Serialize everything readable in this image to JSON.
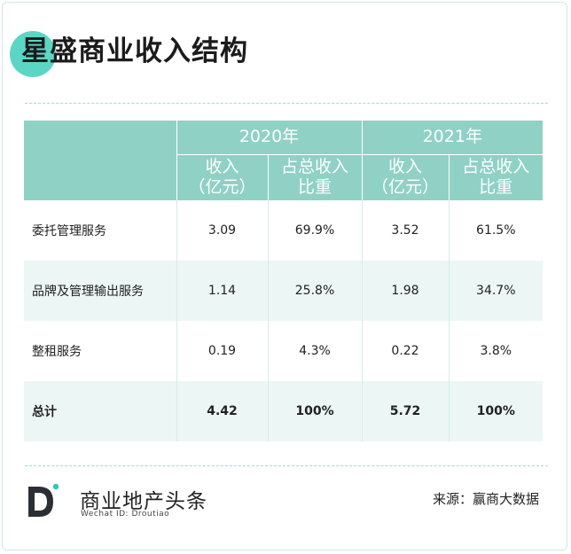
{
  "title": "星盛商业收入结构",
  "table": {
    "year_2020": "2020年",
    "year_2021": "2021年",
    "sub_revenue": [
      "收入",
      "（亿元）"
    ],
    "sub_share": [
      "占总收入",
      "比重"
    ],
    "rows": [
      {
        "label": "委托管理服务",
        "v2020": "3.09",
        "s2020": "69.9%",
        "v2021": "3.52",
        "s2021": "61.5%"
      },
      {
        "label": "品牌及管理输出服务",
        "v2020": "1.14",
        "s2020": "25.8%",
        "v2021": "1.98",
        "s2021": "34.7%"
      },
      {
        "label": "整租服务",
        "v2020": "0.19",
        "s2020": "4.3%",
        "v2021": "0.22",
        "s2021": "3.8%"
      },
      {
        "label": "总计",
        "v2020": "4.42",
        "s2020": "100%",
        "v2021": "5.72",
        "s2021": "100%"
      }
    ]
  },
  "footer": {
    "brand": "商业地产头条",
    "brand_sub": "Wechat ID: Droutiao",
    "source": "来源：赢商大数据"
  },
  "colors": {
    "accent": "#5cd6c4",
    "header_bg": "#8fd1c5",
    "row_alt": "#ecf6f4"
  }
}
